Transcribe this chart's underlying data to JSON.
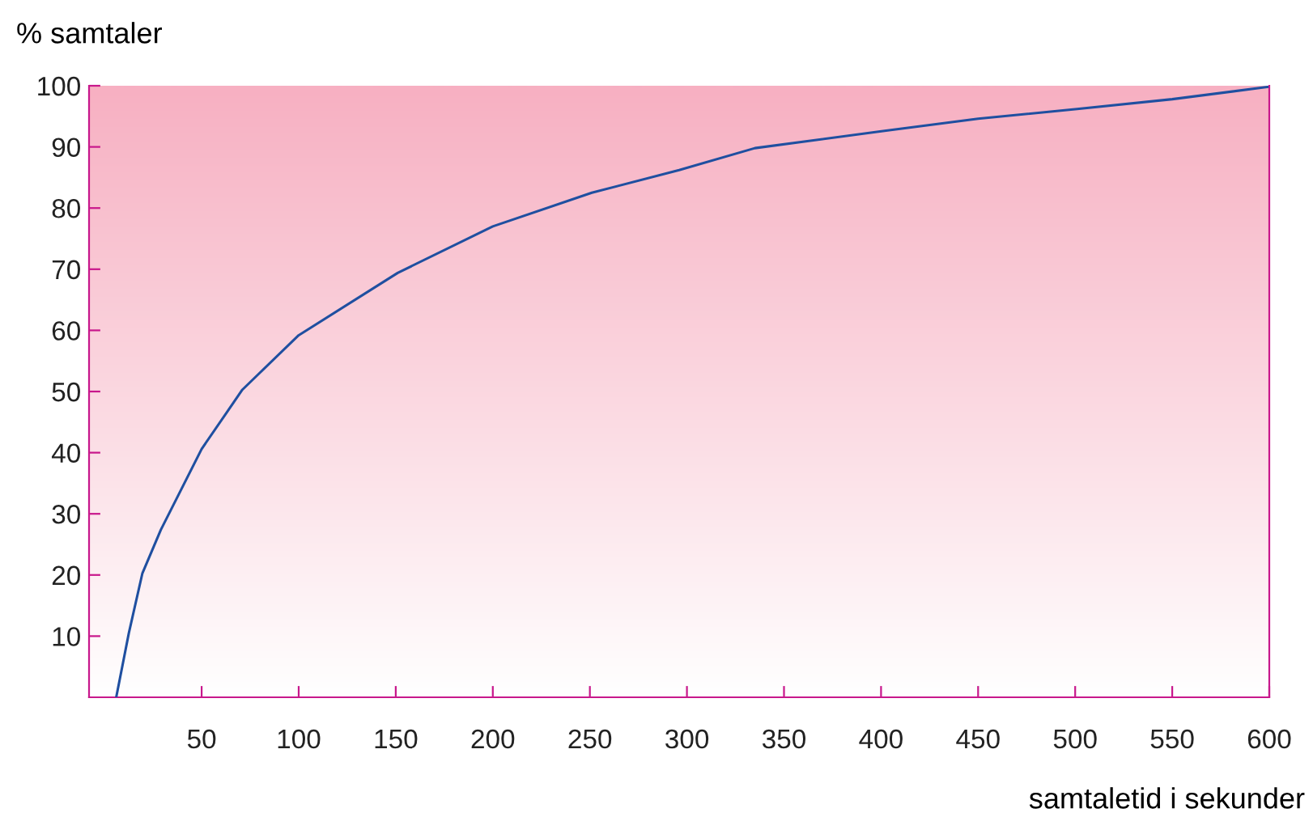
{
  "chart_data": {
    "type": "line",
    "ylabel": "% samtaler",
    "xlabel": "samtaletid i sekunder",
    "x": [
      6,
      12.5,
      19.5,
      29,
      50,
      71,
      100,
      151,
      200,
      251,
      296,
      335,
      401,
      450,
      501,
      550,
      599
    ],
    "series": [
      {
        "color": "#1f4fa0",
        "values": [
          0,
          10.5,
          20.3,
          27.4,
          40.6,
          50.3,
          59.2,
          69.4,
          77,
          82.5,
          86.2,
          89.8,
          92.6,
          94.6,
          96.2,
          97.8,
          99.8
        ]
      }
    ],
    "xlim": [
      -8,
      600
    ],
    "ylim": [
      0,
      100
    ],
    "xticks": [
      50,
      100,
      150,
      200,
      250,
      300,
      350,
      400,
      450,
      500,
      550,
      600
    ],
    "yticks": [
      10,
      20,
      30,
      40,
      50,
      60,
      70,
      80,
      90,
      100
    ],
    "grid": false,
    "legend": false,
    "marker": "none",
    "line_style": "solid"
  }
}
